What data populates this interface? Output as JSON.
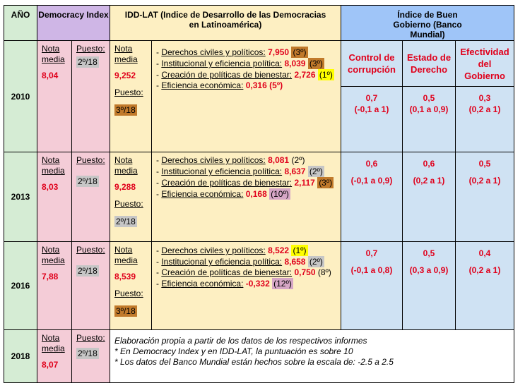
{
  "header": {
    "year": "AÑO",
    "democracy_index": "Democracy Index",
    "idd_lat": "IDD-LAT (Indice de Desarrollo de las Democracias en Latinoamérica)",
    "buen_gobierno": "Índice de Buen Gobierno (Banco Mundial)"
  },
  "wb_columns": [
    "Control de corrupción",
    "Estado de Derecho",
    "Efectividad del Gobierno"
  ],
  "labels": {
    "nota_media": "Nota media",
    "puesto": "Puesto:",
    "indicator_sep": "- ",
    "indicators": [
      "Derechos civiles y políticos:",
      "Institucional y eficiencia política:",
      "Creación de políticas de bienestar:",
      "Eficiencia económica:"
    ]
  },
  "rows": [
    {
      "year": "2010",
      "dem_score": "8,04",
      "dem_rank": "2º/18",
      "idd_score": "9,252",
      "idd_rank": "3º/18",
      "indicators": [
        {
          "value": "7,950",
          "rank": "(3º)",
          "color": "#c17a2b"
        },
        {
          "value": "8,039",
          "rank": "(3º)",
          "color": "#c17a2b"
        },
        {
          "value": "2,726",
          "rank": "(1º)",
          "color": "#ffff00"
        },
        {
          "value": "0,316",
          "rank": "(5º)",
          "color": "none"
        }
      ],
      "wb": [
        {
          "value": "0,7",
          "range": "(-0,1 a 1)"
        },
        {
          "value": "0,5",
          "range": "(0,1 a 0,9)"
        },
        {
          "value": "0,3",
          "range": "(0,2 a 1)"
        }
      ]
    },
    {
      "year": "2013",
      "dem_score": "8,03",
      "dem_rank": "2º/18",
      "idd_score": "9,288",
      "idd_rank": "2º/18",
      "indicators": [
        {
          "value": "8,081",
          "rank": "(2º)",
          "color": "none"
        },
        {
          "value": "8,637",
          "rank": "(2º)",
          "color": "#c6c6c6"
        },
        {
          "value": "2,117",
          "rank": "(3º)",
          "color": "#c17a2b"
        },
        {
          "value": "0,168",
          "rank": "(10º)",
          "color": "#d6a6c6"
        }
      ],
      "wb": [
        {
          "value": "0,6",
          "range": "(-0,1 a 0,9)"
        },
        {
          "value": "0,6",
          "range": "(0,2 a 1)"
        },
        {
          "value": "0,5",
          "range": "(0,2 a 1)"
        }
      ]
    },
    {
      "year": "2016",
      "dem_score": "7,88",
      "dem_rank": "2º/18",
      "idd_score": "8,539",
      "idd_rank": "3º/18",
      "indicators": [
        {
          "value": "8,522",
          "rank": "(1º)",
          "color": "#ffff00"
        },
        {
          "value": "8,658",
          "rank": "(2º)",
          "color": "#c6c6c6"
        },
        {
          "value": "0,750",
          "rank": "(8º)",
          "color": "none"
        },
        {
          "value": "-0,332",
          "rank": "(12º)",
          "color": "#d6a6c6"
        }
      ],
      "wb": [
        {
          "value": "0,7",
          "range": "(-0,1 a 0,8)"
        },
        {
          "value": "0,5",
          "range": "(0,3 a 0,9)"
        },
        {
          "value": "0,4",
          "range": "(0,2 a 1)"
        }
      ]
    }
  ],
  "last_row": {
    "year": "2018",
    "dem_score": "8,07",
    "dem_rank": "2º/18",
    "notes": [
      "Elaboración propia a partir de los datos de los respectivos informes",
      "*  En Democracy Index y en IDD-LAT, la puntuación es sobre 10",
      "* Los datos del Banco Mundial están hechos sobre la escala de: -2.5 a 2.5"
    ]
  },
  "colors": {
    "year_bg": "#d5ecd4",
    "dem_bg": "#f4ccd7",
    "dem_header_bg": "#cfb6e6",
    "idd_bg": "#fdefc2",
    "wb_bg": "#cfe2f3",
    "wb_header_bg": "#9fc5f8",
    "value_red": "#e0001b",
    "rank_gray": "#c6c6c6",
    "rank_orange": "#c17a2b"
  }
}
